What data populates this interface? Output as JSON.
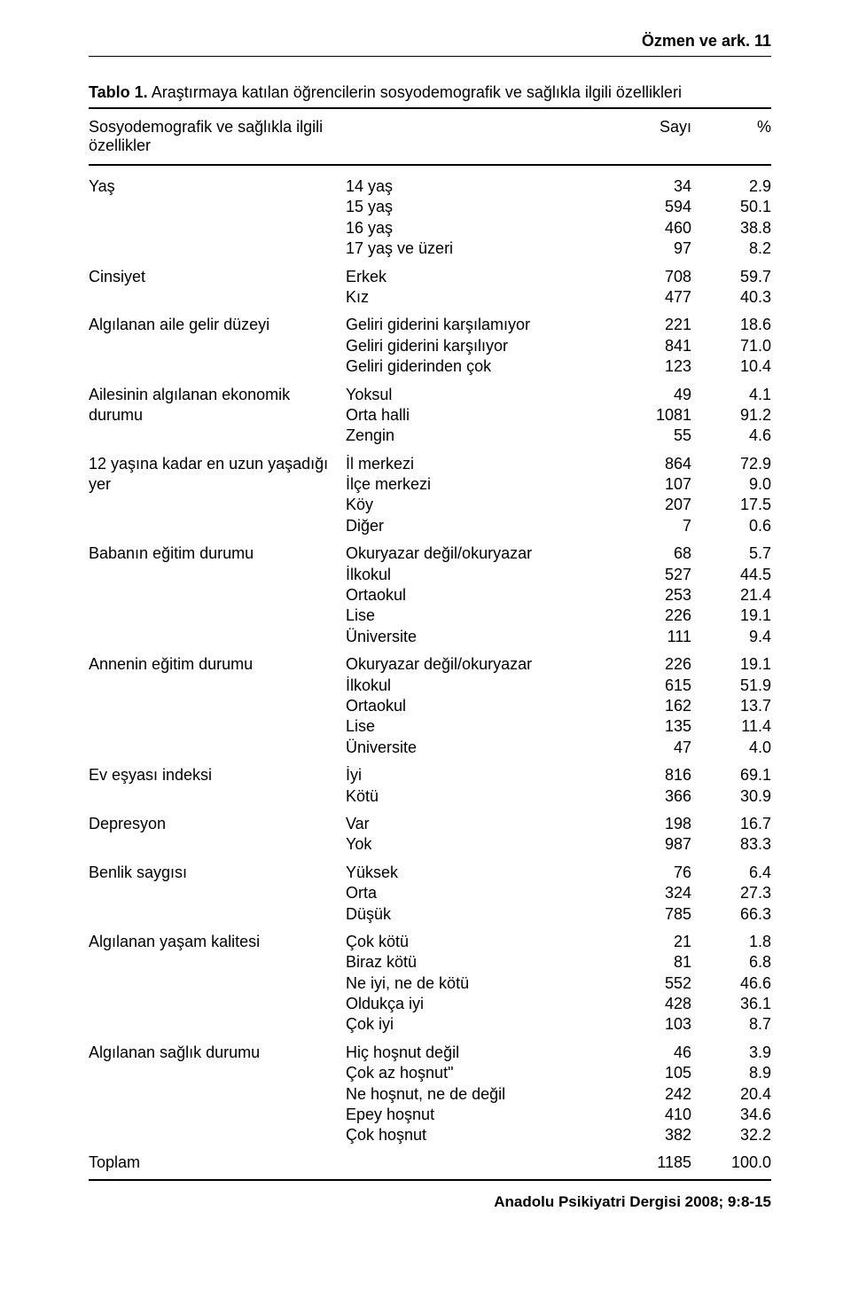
{
  "running_head": "Özmen ve ark.    11",
  "table_label_bold": "Tablo 1.",
  "table_label_rest": " Araştırmaya katılan öğrencilerin sosyodemografik ve sağlıkla ilgili özellikleri",
  "head": {
    "var_label": "Sosyodemografik ve sağlıkla ilgili özellikler",
    "count_label": "Sayı",
    "pct_label": "%"
  },
  "groups": [
    {
      "var": "Yaş",
      "levels": [
        {
          "label": "14 yaş",
          "count": "34",
          "pct": "2.9"
        },
        {
          "label": "15 yaş",
          "count": "594",
          "pct": "50.1"
        },
        {
          "label": "16 yaş",
          "count": "460",
          "pct": "38.8"
        },
        {
          "label": "17 yaş ve üzeri",
          "count": "97",
          "pct": "8.2"
        }
      ]
    },
    {
      "var": "Cinsiyet",
      "levels": [
        {
          "label": "Erkek",
          "count": "708",
          "pct": "59.7"
        },
        {
          "label": "Kız",
          "count": "477",
          "pct": "40.3"
        }
      ]
    },
    {
      "var": "Algılanan aile gelir düzeyi",
      "levels": [
        {
          "label": "Geliri giderini karşılamıyor",
          "count": "221",
          "pct": "18.6"
        },
        {
          "label": "Geliri giderini karşılıyor",
          "count": "841",
          "pct": "71.0"
        },
        {
          "label": "Geliri giderinden çok",
          "count": "123",
          "pct": "10.4"
        }
      ]
    },
    {
      "var": "Ailesinin algılanan ekonomik durumu",
      "levels": [
        {
          "label": "Yoksul",
          "count": "49",
          "pct": "4.1"
        },
        {
          "label": "Orta halli",
          "count": "1081",
          "pct": "91.2"
        },
        {
          "label": "Zengin",
          "count": "55",
          "pct": "4.6"
        }
      ]
    },
    {
      "var": "12 yaşına kadar en uzun yaşadığı yer",
      "levels": [
        {
          "label": "İl merkezi",
          "count": "864",
          "pct": "72.9"
        },
        {
          "label": "İlçe merkezi",
          "count": "107",
          "pct": "9.0"
        },
        {
          "label": "Köy",
          "count": "207",
          "pct": "17.5"
        },
        {
          "label": "Diğer",
          "count": "7",
          "pct": "0.6"
        }
      ]
    },
    {
      "var": "Babanın eğitim durumu",
      "levels": [
        {
          "label": "Okuryazar değil/okuryazar",
          "count": "68",
          "pct": "5.7"
        },
        {
          "label": "İlkokul",
          "count": "527",
          "pct": "44.5"
        },
        {
          "label": "Ortaokul",
          "count": "253",
          "pct": "21.4"
        },
        {
          "label": "Lise",
          "count": "226",
          "pct": "19.1"
        },
        {
          "label": "Üniversite",
          "count": "111",
          "pct": "9.4"
        }
      ]
    },
    {
      "var": "Annenin eğitim durumu",
      "levels": [
        {
          "label": "Okuryazar değil/okuryazar",
          "count": "226",
          "pct": "19.1"
        },
        {
          "label": "İlkokul",
          "count": "615",
          "pct": "51.9"
        },
        {
          "label": "Ortaokul",
          "count": "162",
          "pct": "13.7"
        },
        {
          "label": "Lise",
          "count": "135",
          "pct": "11.4"
        },
        {
          "label": "Üniversite",
          "count": "47",
          "pct": "4.0"
        }
      ]
    },
    {
      "var": "Ev eşyası indeksi",
      "levels": [
        {
          "label": "İyi",
          "count": "816",
          "pct": "69.1"
        },
        {
          "label": "Kötü",
          "count": "366",
          "pct": "30.9"
        }
      ]
    },
    {
      "var": "Depresyon",
      "levels": [
        {
          "label": "Var",
          "count": "198",
          "pct": "16.7"
        },
        {
          "label": "Yok",
          "count": "987",
          "pct": "83.3"
        }
      ]
    },
    {
      "var": "Benlik saygısı",
      "levels": [
        {
          "label": "Yüksek",
          "count": "76",
          "pct": "6.4"
        },
        {
          "label": "Orta",
          "count": "324",
          "pct": "27.3"
        },
        {
          "label": "Düşük",
          "count": "785",
          "pct": "66.3"
        }
      ]
    },
    {
      "var": "Algılanan yaşam kalitesi",
      "levels": [
        {
          "label": "Çok kötü",
          "count": "21",
          "pct": "1.8"
        },
        {
          "label": "Biraz kötü",
          "count": "81",
          "pct": "6.8"
        },
        {
          "label": "Ne iyi, ne de kötü",
          "count": "552",
          "pct": "46.6"
        },
        {
          "label": "Oldukça iyi",
          "count": "428",
          "pct": "36.1"
        },
        {
          "label": "Çok iyi",
          "count": "103",
          "pct": "8.7"
        }
      ]
    },
    {
      "var": "Algılanan sağlık durumu",
      "levels": [
        {
          "label": "Hiç hoşnut değil",
          "count": "46",
          "pct": "3.9"
        },
        {
          "label": "Çok az hoşnut\"",
          "count": "105",
          "pct": "8.9"
        },
        {
          "label": "Ne hoşnut, ne de değil",
          "count": "242",
          "pct": "20.4"
        },
        {
          "label": "Epey hoşnut",
          "count": "410",
          "pct": "34.6"
        },
        {
          "label": "Çok hoşnut",
          "count": "382",
          "pct": "32.2"
        }
      ]
    }
  ],
  "total": {
    "label": "Toplam",
    "count": "1185",
    "pct": "100.0"
  },
  "footer": "Anadolu Psikiyatri Dergisi 2008; 9:8-15"
}
